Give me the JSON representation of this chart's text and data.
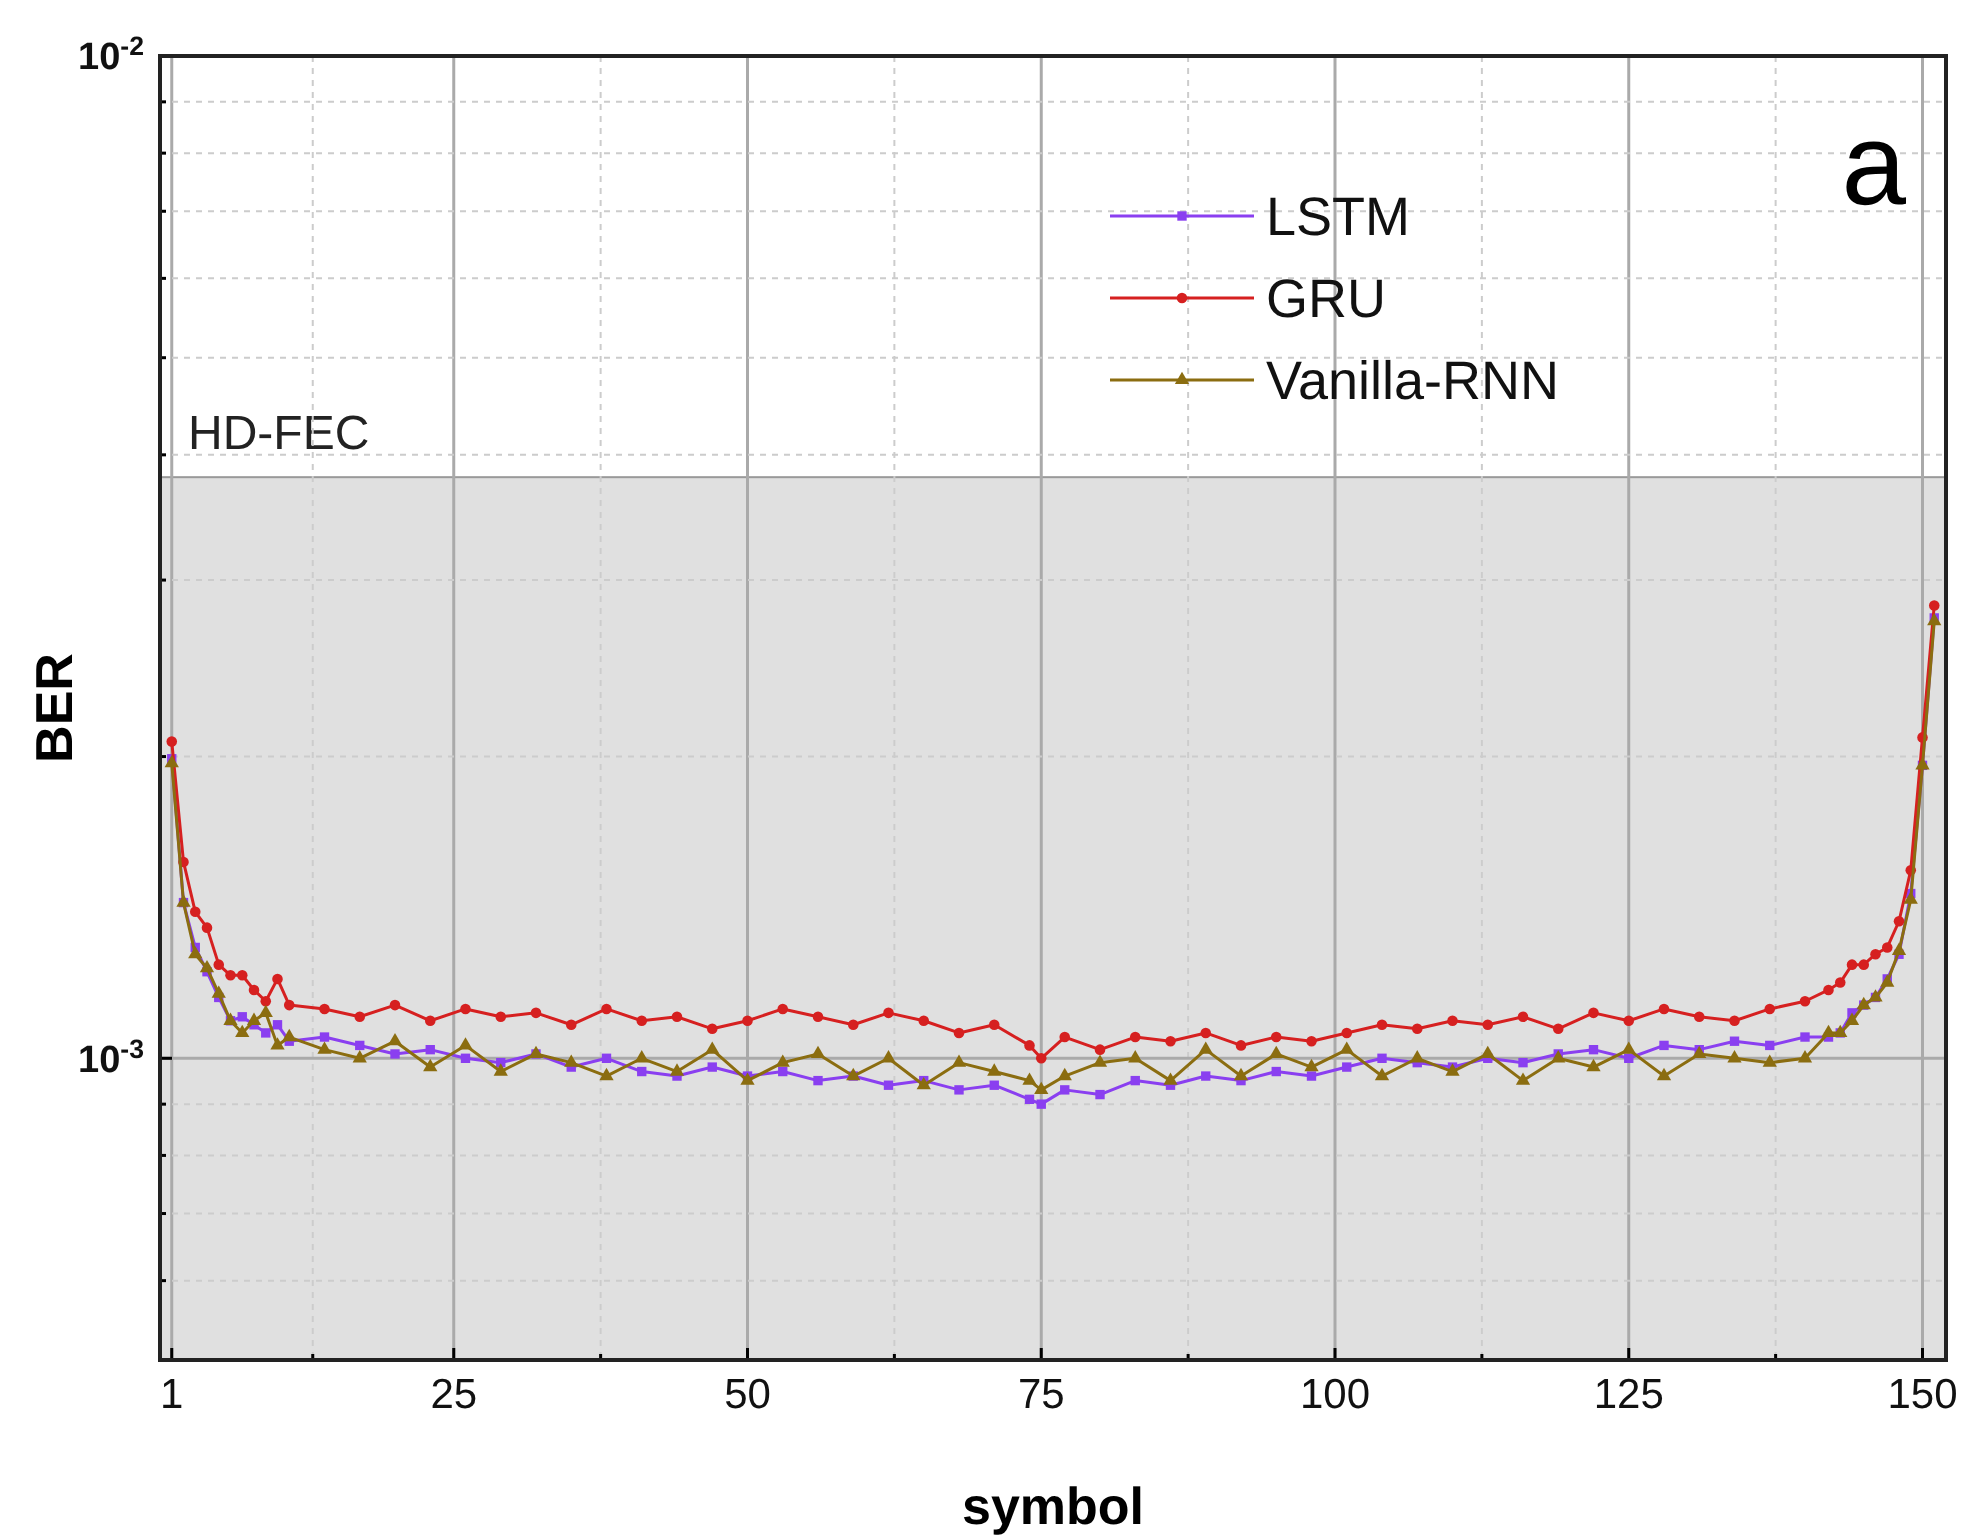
{
  "chart_data": {
    "type": "line",
    "xlabel": "symbol",
    "ylabel": "BER",
    "log": "y",
    "grid": true,
    "legend": "top right",
    "xlim": [
      0,
      152
    ],
    "ylim": [
      0.0005,
      0.01
    ],
    "xticks": [
      1,
      {
        "value": 13,
        "label": null
      },
      25,
      {
        "value": 37.5,
        "label": null
      },
      50,
      {
        "value": 62.5,
        "label": null
      },
      75,
      {
        "value": 87.5,
        "label": null
      },
      100,
      {
        "value": 112.5,
        "label": null
      },
      125,
      {
        "value": 137.5,
        "label": null
      },
      150
    ],
    "yticks": [
      {
        "value": 0.0006,
        "label": null
      },
      {
        "value": 0.0007,
        "label": null
      },
      {
        "value": 0.0008,
        "label": null
      },
      {
        "value": 0.0009,
        "label": null
      },
      {
        "value": 0.001,
        "label": "10$^{-3}$"
      },
      {
        "value": 0.002,
        "label": null
      },
      {
        "value": 0.003,
        "label": null
      },
      {
        "value": 0.004,
        "label": null
      },
      {
        "value": 0.005,
        "label": null
      },
      {
        "value": 0.006,
        "label": null
      },
      {
        "value": 0.007,
        "label": null
      },
      {
        "value": 0.008,
        "label": null
      },
      {
        "value": 0.009,
        "label": null
      },
      {
        "value": 0.01,
        "label": "10$^{-2}$"
      }
    ],
    "x": [
      1,
      2,
      3,
      4,
      5,
      6,
      7,
      8,
      9,
      10,
      11,
      14,
      17,
      20,
      23,
      26,
      29,
      32,
      35,
      38,
      41,
      44,
      47,
      50,
      53,
      56,
      59,
      62,
      65,
      68,
      71,
      74,
      75,
      77,
      80,
      83,
      86,
      89,
      92,
      95,
      98,
      101,
      104,
      107,
      110,
      113,
      116,
      119,
      122,
      125,
      128,
      131,
      134,
      137,
      140,
      142,
      143,
      144,
      145,
      146,
      147,
      148,
      149,
      150,
      151
    ],
    "bands": [
      {
        "axis": "y",
        "from": 0.0005,
        "to": 0.0038,
        "label": "HD-FEC",
        "color": "#e0e0e0"
      }
    ],
    "annotations": [
      {
        "text": "a"
      }
    ],
    "series": [
      {
        "name": "LSTM",
        "color": "#8a3ff0",
        "marker": "square",
        "values": [
          0.00199,
          0.00143,
          0.00129,
          0.00122,
          0.00115,
          0.00109,
          0.0011,
          0.00108,
          0.00106,
          0.00108,
          0.00104,
          0.00105,
          0.00103,
          0.00101,
          0.00102,
          0.001,
          0.00099,
          0.00101,
          0.00098,
          0.001,
          0.00097,
          0.00096,
          0.00098,
          0.00096,
          0.00097,
          0.00095,
          0.00096,
          0.00094,
          0.00095,
          0.00093,
          0.00094,
          0.00091,
          0.0009,
          0.00093,
          0.00092,
          0.00095,
          0.00094,
          0.00096,
          0.00095,
          0.00097,
          0.00096,
          0.00098,
          0.001,
          0.00099,
          0.00098,
          0.001,
          0.00099,
          0.00101,
          0.00102,
          0.001,
          0.00103,
          0.00102,
          0.00104,
          0.00103,
          0.00105,
          0.00105,
          0.00106,
          0.00111,
          0.00113,
          0.00115,
          0.0012,
          0.00127,
          0.00146,
          0.00196,
          0.00275
        ]
      },
      {
        "name": "GRU",
        "color": "#d62020",
        "marker": "circle",
        "values": [
          0.00207,
          0.00157,
          0.0014,
          0.00135,
          0.00124,
          0.00121,
          0.00121,
          0.00117,
          0.00114,
          0.0012,
          0.00113,
          0.00112,
          0.0011,
          0.00113,
          0.00109,
          0.00112,
          0.0011,
          0.00111,
          0.00108,
          0.00112,
          0.00109,
          0.0011,
          0.00107,
          0.00109,
          0.00112,
          0.0011,
          0.00108,
          0.00111,
          0.00109,
          0.00106,
          0.00108,
          0.00103,
          0.001,
          0.00105,
          0.00102,
          0.00105,
          0.00104,
          0.00106,
          0.00103,
          0.00105,
          0.00104,
          0.00106,
          0.00108,
          0.00107,
          0.00109,
          0.00108,
          0.0011,
          0.00107,
          0.00111,
          0.00109,
          0.00112,
          0.0011,
          0.00109,
          0.00112,
          0.00114,
          0.00117,
          0.00119,
          0.00124,
          0.00124,
          0.00127,
          0.00129,
          0.00137,
          0.00154,
          0.00209,
          0.00283
        ]
      },
      {
        "name": "Vanilla-RNN",
        "color": "#8b6d10",
        "marker": "triangle",
        "values": [
          0.00197,
          0.00143,
          0.00127,
          0.00123,
          0.00116,
          0.00109,
          0.00106,
          0.00109,
          0.00111,
          0.00103,
          0.00105,
          0.00102,
          0.001,
          0.00104,
          0.00098,
          0.00103,
          0.00097,
          0.00101,
          0.00099,
          0.00096,
          0.001,
          0.00097,
          0.00102,
          0.00095,
          0.00099,
          0.00101,
          0.00096,
          0.001,
          0.00094,
          0.00099,
          0.00097,
          0.00095,
          0.00093,
          0.00096,
          0.00099,
          0.001,
          0.00095,
          0.00102,
          0.00096,
          0.00101,
          0.00098,
          0.00102,
          0.00096,
          0.001,
          0.00097,
          0.00101,
          0.00095,
          0.001,
          0.00098,
          0.00102,
          0.00096,
          0.00101,
          0.001,
          0.00099,
          0.001,
          0.00106,
          0.00106,
          0.00109,
          0.00113,
          0.00115,
          0.00119,
          0.00128,
          0.00144,
          0.00196,
          0.00273
        ]
      }
    ]
  }
}
